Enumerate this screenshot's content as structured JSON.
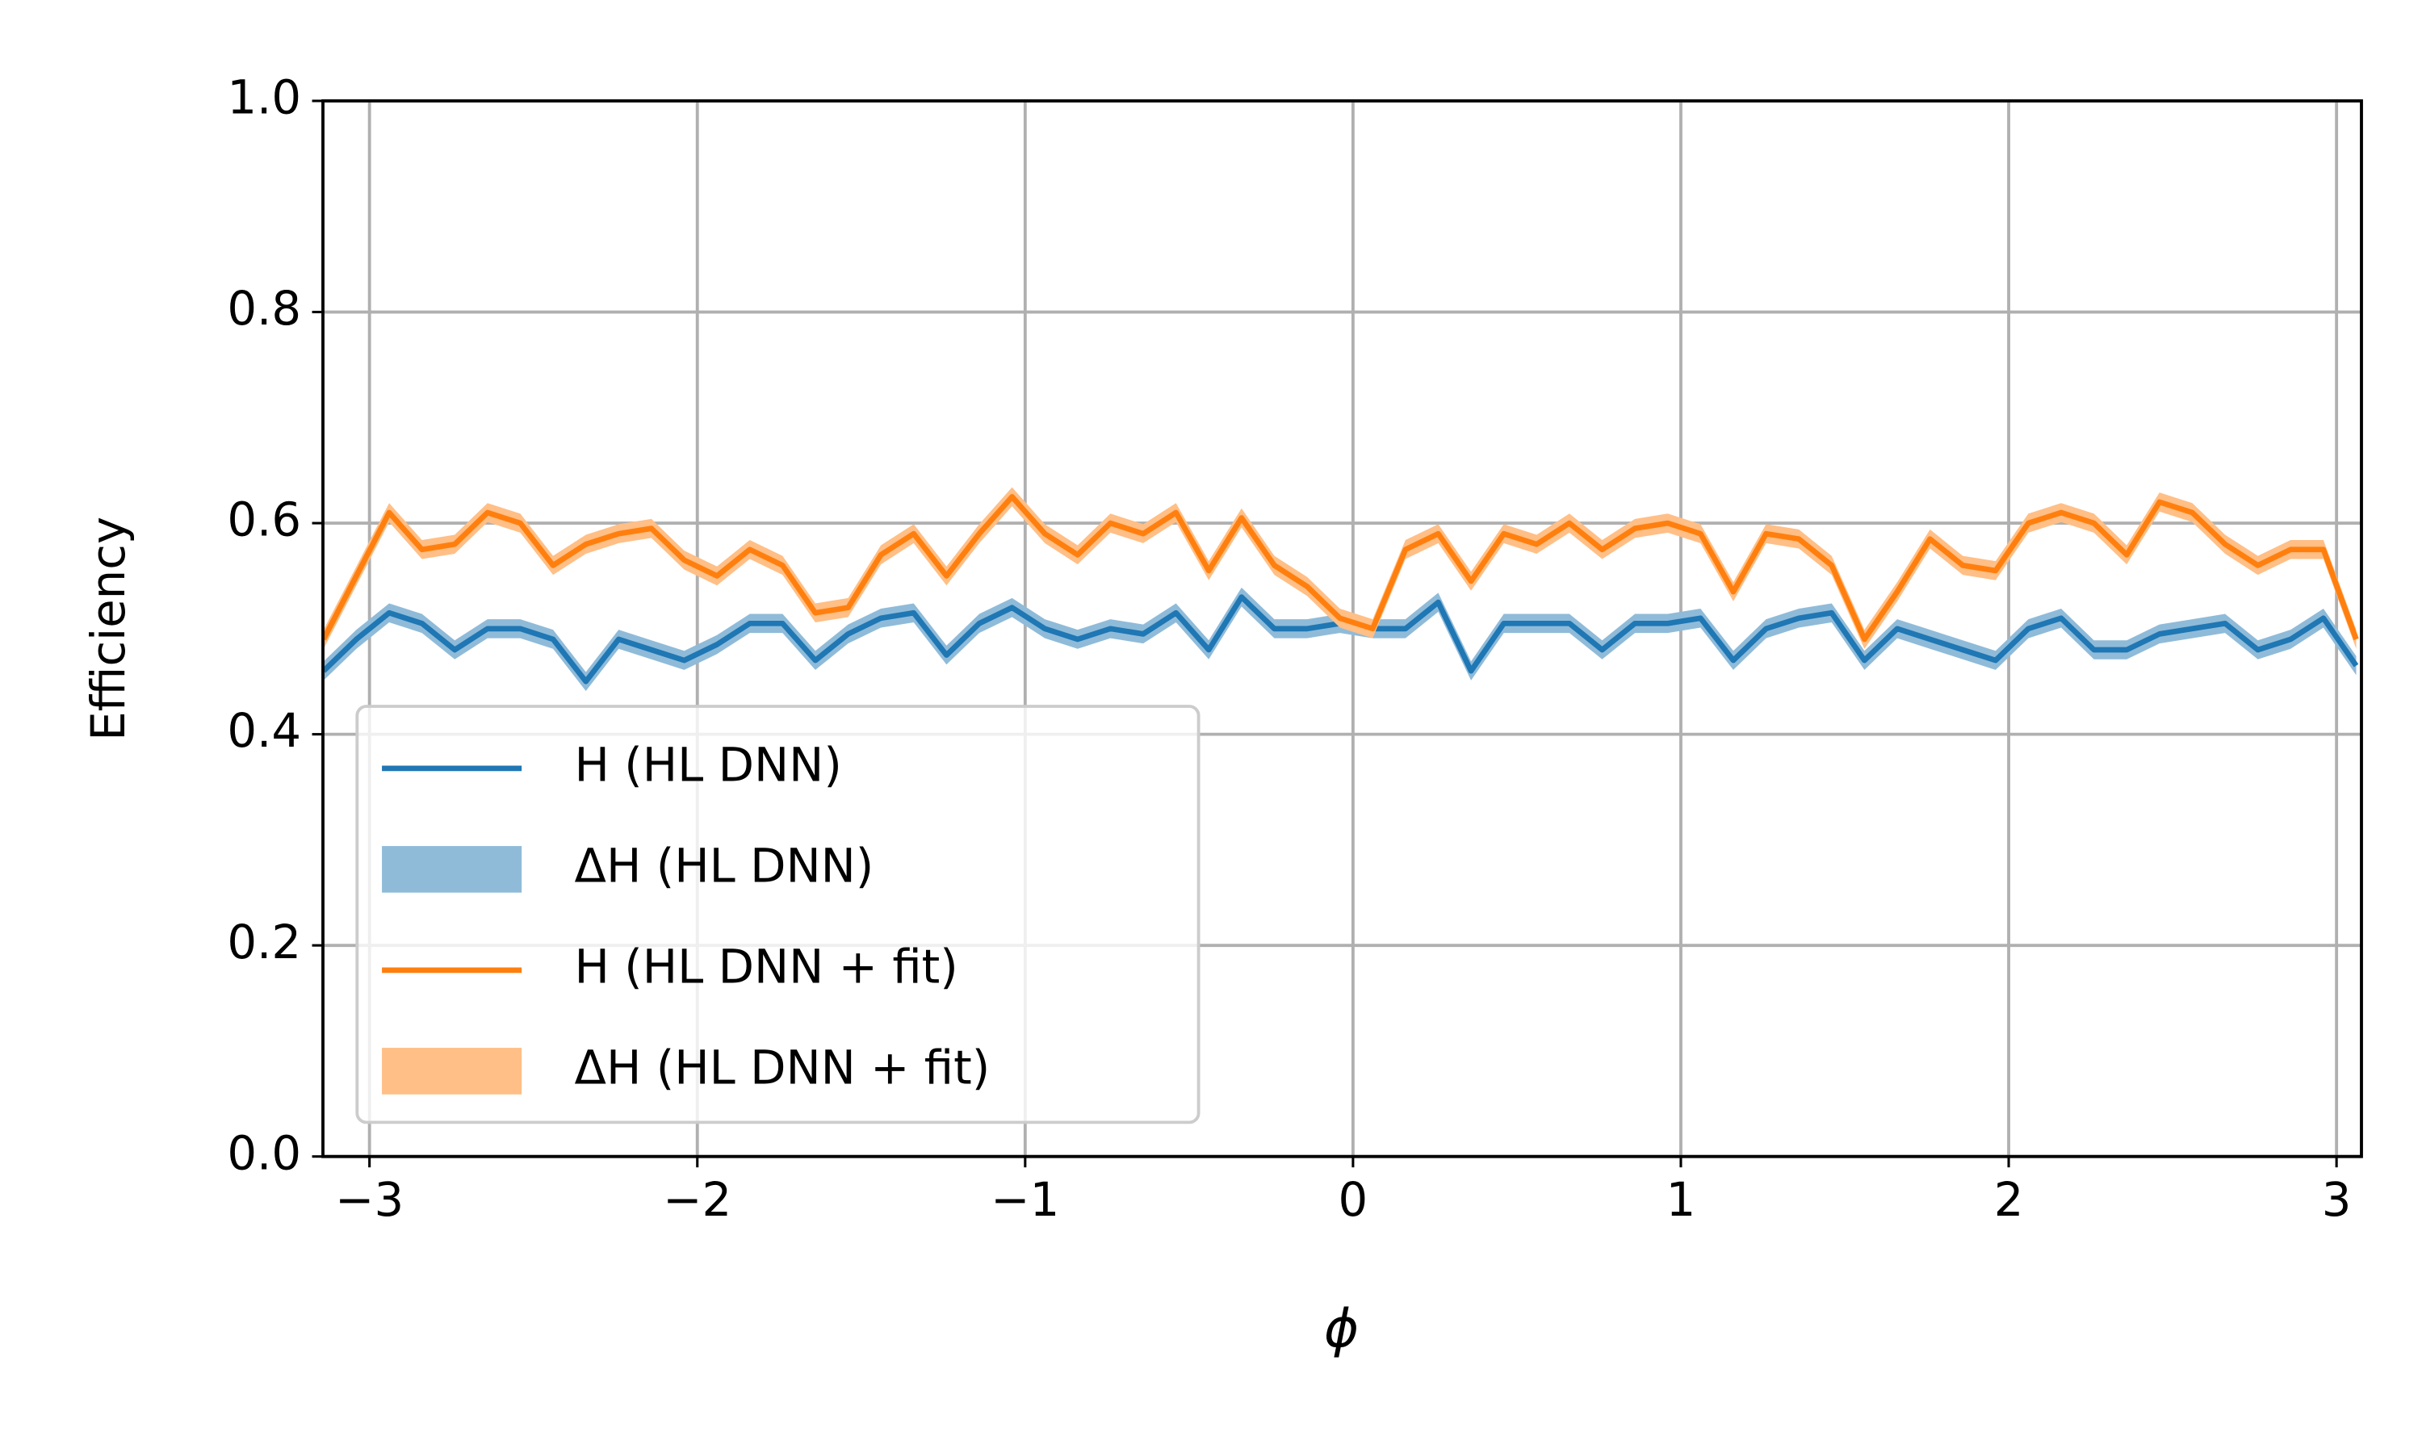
{
  "chart_data": {
    "type": "line",
    "xlabel": "ϕ",
    "ylabel": "Efficiency",
    "x": [
      -3.14,
      -3.04,
      -2.94,
      -2.84,
      -2.74,
      -2.64,
      -2.54,
      -2.44,
      -2.34,
      -2.24,
      -2.14,
      -2.04,
      -1.94,
      -1.84,
      -1.74,
      -1.64,
      -1.54,
      -1.44,
      -1.34,
      -1.24,
      -1.14,
      -1.04,
      -0.94,
      -0.84,
      -0.74,
      -0.64,
      -0.54,
      -0.44,
      -0.34,
      -0.24,
      -0.14,
      -0.04,
      0.06,
      0.16,
      0.26,
      0.36,
      0.46,
      0.56,
      0.66,
      0.76,
      0.86,
      0.96,
      1.06,
      1.16,
      1.26,
      1.36,
      1.46,
      1.56,
      1.66,
      1.76,
      1.86,
      1.96,
      2.06,
      2.16,
      2.26,
      2.36,
      2.46,
      2.56,
      2.66,
      2.76,
      2.86,
      2.96,
      3.06
    ],
    "series": [
      {
        "name": "H (HL DNN)",
        "color": "#1f77b4",
        "band_name": "ΔH (HL DNN)",
        "band_color": "#8fbbd9",
        "error": 0.009,
        "values": [
          0.46,
          0.49,
          0.515,
          0.505,
          0.48,
          0.5,
          0.5,
          0.49,
          0.45,
          0.49,
          0.48,
          0.47,
          0.485,
          0.505,
          0.505,
          0.47,
          0.495,
          0.51,
          0.515,
          0.475,
          0.505,
          0.52,
          0.5,
          0.49,
          0.5,
          0.495,
          0.515,
          0.48,
          0.53,
          0.5,
          0.5,
          0.505,
          0.5,
          0.5,
          0.525,
          0.46,
          0.505,
          0.505,
          0.505,
          0.48,
          0.505,
          0.505,
          0.51,
          0.47,
          0.5,
          0.51,
          0.515,
          0.47,
          0.5,
          0.49,
          0.48,
          0.47,
          0.5,
          0.51,
          0.48,
          0.48,
          0.495,
          0.5,
          0.505,
          0.48,
          0.49,
          0.51,
          0.465
        ]
      },
      {
        "name": "H (HL DNN + fit)",
        "color": "#ff7f0e",
        "band_name": "ΔH (HL DNN + fit)",
        "band_color": "#ffbf86",
        "error": 0.009,
        "values": [
          0.49,
          0.55,
          0.61,
          0.575,
          0.58,
          0.61,
          0.6,
          0.56,
          0.58,
          0.59,
          0.595,
          0.565,
          0.55,
          0.575,
          0.56,
          0.515,
          0.52,
          0.57,
          0.59,
          0.55,
          0.59,
          0.625,
          0.59,
          0.57,
          0.6,
          0.59,
          0.61,
          0.555,
          0.605,
          0.56,
          0.54,
          0.51,
          0.5,
          0.575,
          0.59,
          0.545,
          0.59,
          0.58,
          0.6,
          0.575,
          0.595,
          0.6,
          0.59,
          0.535,
          0.59,
          0.585,
          0.56,
          0.49,
          0.535,
          0.585,
          0.56,
          0.555,
          0.6,
          0.61,
          0.6,
          0.57,
          0.62,
          0.61,
          0.58,
          0.56,
          0.575,
          0.575,
          0.49
        ]
      }
    ],
    "xlim": [
      -3.142,
      3.076
    ],
    "ylim": [
      0,
      1
    ],
    "xticks": [
      {
        "value": -3,
        "label": "−3"
      },
      {
        "value": -2,
        "label": "−2"
      },
      {
        "value": -1,
        "label": "−1"
      },
      0,
      1,
      2,
      3
    ],
    "yticks": [
      {
        "value": 0,
        "label": "0.0"
      },
      0.2,
      0.4,
      0.6,
      0.8,
      {
        "value": 1,
        "label": "1.0"
      }
    ],
    "grid": true,
    "legend": "lower left"
  }
}
